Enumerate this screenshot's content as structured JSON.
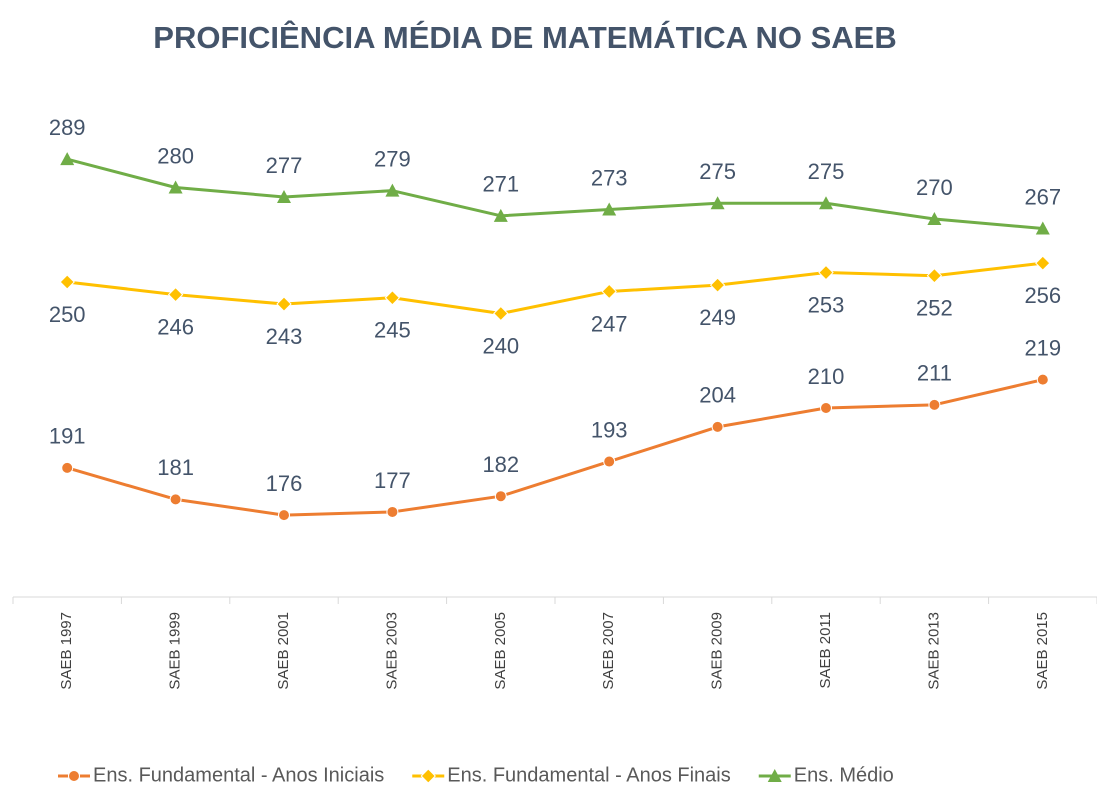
{
  "chart_data": {
    "type": "line",
    "title": "PROFICIÊNCIA MÉDIA DE MATEMÁTICA NO SAEB",
    "categories": [
      "SAEB 1997",
      "SAEB 1999",
      "SAEB 2001",
      "SAEB 2003",
      "SAEB 2005",
      "SAEB 2007",
      "SAEB 2009",
      "SAEB 2011",
      "SAEB 2013",
      "SAEB 2015"
    ],
    "series": [
      {
        "name": "Ens. Fundamental - Anos Iniciais",
        "color": "#ed7d31",
        "marker": "circle",
        "label_position": "above",
        "values": [
          191,
          181,
          176,
          177,
          182,
          193,
          204,
          210,
          211,
          219
        ]
      },
      {
        "name": "Ens. Fundamental - Anos Finais",
        "color": "#ffc000",
        "marker": "diamond",
        "label_position": "below",
        "values": [
          250,
          246,
          243,
          245,
          240,
          247,
          249,
          253,
          252,
          256
        ]
      },
      {
        "name": "Ens. Médio",
        "color": "#70ad47",
        "marker": "triangle",
        "label_position": "above",
        "values": [
          289,
          280,
          277,
          279,
          271,
          273,
          275,
          275,
          270,
          267
        ]
      }
    ],
    "ylim": [
      150,
      300
    ],
    "legend": "bottom"
  }
}
